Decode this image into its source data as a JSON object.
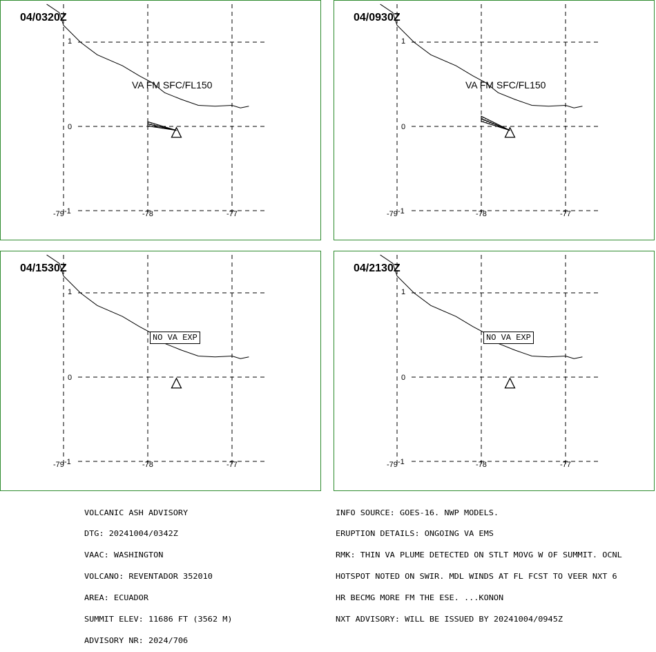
{
  "panels": [
    {
      "time": "04/0320Z",
      "plume_label": "VA FM SFC/FL150",
      "plume_to": [
        -78.0,
        0.03
      ],
      "plume_width": 0.05,
      "no_va": ""
    },
    {
      "time": "04/0930Z",
      "plume_label": "VA FM SFC/FL150",
      "plume_to": [
        -78.0,
        0.09
      ],
      "plume_width": 0.06,
      "no_va": ""
    },
    {
      "time": "04/1530Z",
      "plume_label": "",
      "no_va": "NO VA EXP"
    },
    {
      "time": "04/2130Z",
      "plume_label": "",
      "no_va": "NO VA EXP"
    }
  ],
  "map": {
    "lat_labels": [
      "1",
      "0",
      "-1"
    ],
    "lon_labels": [
      "-79",
      "-78",
      "-77"
    ],
    "volcano_lonlat": [
      -77.66,
      -0.08
    ],
    "coastline": [
      [
        -79.2,
        1.45
      ],
      [
        -79.05,
        1.35
      ],
      [
        -79.0,
        1.2
      ],
      [
        -78.8,
        1.0
      ],
      [
        -78.6,
        0.85
      ],
      [
        -78.3,
        0.72
      ],
      [
        -78.1,
        0.6
      ],
      [
        -77.95,
        0.52
      ],
      [
        -77.8,
        0.4
      ],
      [
        -77.6,
        0.32
      ],
      [
        -77.4,
        0.25
      ],
      [
        -77.2,
        0.24
      ],
      [
        -77.0,
        0.25
      ],
      [
        -76.9,
        0.22
      ],
      [
        -76.8,
        0.24
      ]
    ]
  },
  "advisory_left": [
    "VOLCANIC ASH ADVISORY",
    "DTG: 20241004/0342Z",
    "VAAC: WASHINGTON",
    "VOLCANO: REVENTADOR 352010",
    "AREA: ECUADOR",
    "SUMMIT ELEV: 11686 FT (3562 M)",
    "ADVISORY NR: 2024/706"
  ],
  "advisory_right": [
    "INFO SOURCE: GOES-16. NWP MODELS.",
    "ERUPTION DETAILS: ONGOING VA EMS",
    "RMK: THIN VA PLUME DETECTED ON STLT MOVG W OF SUMMIT. OCNL",
    "HOTSPOT NOTED ON SWIR. MDL WINDS AT FL FCST TO VEER NXT 6",
    "HR BECMG MORE FM THE ESE. ...KONON",
    "NXT ADVISORY: WILL BE ISSUED BY 20241004/0945Z"
  ]
}
